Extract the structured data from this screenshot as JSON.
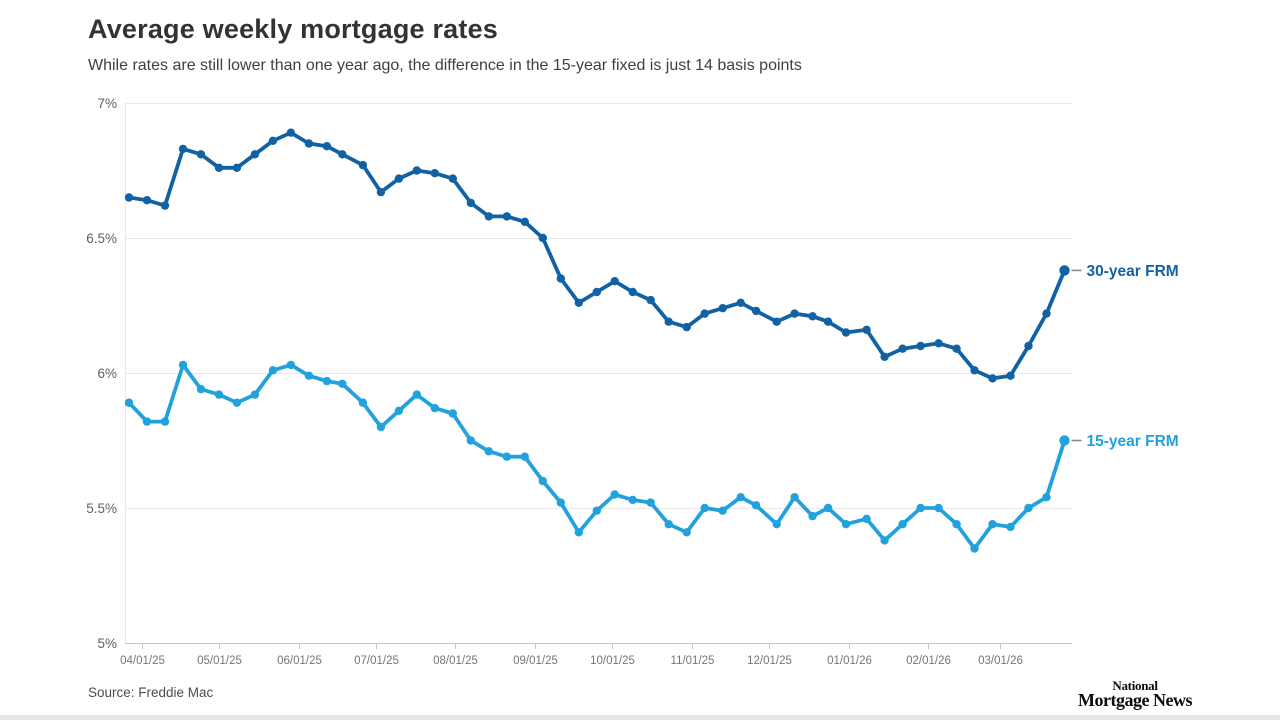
{
  "header": {
    "title": "Average weekly mortgage rates",
    "subtitle": "While rates are still lower than one year ago, the difference in the 15-year fixed is just 14 basis points"
  },
  "chart_data": {
    "type": "line",
    "title": "Average weekly mortgage rates",
    "xlabel": "",
    "ylabel": "",
    "ylim": [
      5,
      7
    ],
    "grid": "horizontal",
    "legend_position": "right-of-last-point",
    "x": [
      "2025-03-27",
      "2025-04-03",
      "2025-04-10",
      "2025-04-17",
      "2025-04-24",
      "2025-05-01",
      "2025-05-08",
      "2025-05-15",
      "2025-05-22",
      "2025-05-29",
      "2025-06-05",
      "2025-06-12",
      "2025-06-18",
      "2025-06-26",
      "2025-07-03",
      "2025-07-10",
      "2025-07-17",
      "2025-07-24",
      "2025-07-31",
      "2025-08-07",
      "2025-08-14",
      "2025-08-21",
      "2025-08-28",
      "2025-09-04",
      "2025-09-11",
      "2025-09-18",
      "2025-09-25",
      "2025-10-02",
      "2025-10-09",
      "2025-10-16",
      "2025-10-23",
      "2025-10-30",
      "2025-11-06",
      "2025-11-13",
      "2025-11-20",
      "2025-11-26",
      "2025-12-04",
      "2025-12-11",
      "2025-12-18",
      "2025-12-24",
      "2025-12-31",
      "2026-01-08",
      "2026-01-15",
      "2026-01-22",
      "2026-01-29",
      "2026-02-05",
      "2026-02-12",
      "2026-02-19",
      "2026-02-26",
      "2026-03-05",
      "2026-03-12",
      "2026-03-19",
      "2026-03-26"
    ],
    "series": [
      {
        "name": "30-year FRM",
        "color": "#1161a5",
        "values": [
          6.65,
          6.64,
          6.62,
          6.83,
          6.81,
          6.76,
          6.76,
          6.81,
          6.86,
          6.89,
          6.85,
          6.84,
          6.81,
          6.77,
          6.67,
          6.72,
          6.75,
          6.74,
          6.72,
          6.63,
          6.58,
          6.58,
          6.56,
          6.5,
          6.35,
          6.26,
          6.3,
          6.34,
          6.3,
          6.27,
          6.19,
          6.17,
          6.22,
          6.24,
          6.26,
          6.23,
          6.19,
          6.22,
          6.21,
          6.19,
          6.15,
          6.16,
          6.06,
          6.09,
          6.1,
          6.11,
          6.09,
          6.01,
          5.98,
          5.99,
          6.1,
          6.22,
          6.38
        ]
      },
      {
        "name": "15-year FRM",
        "color": "#22a2dc",
        "values": [
          5.89,
          5.82,
          5.82,
          6.03,
          5.94,
          5.92,
          5.89,
          5.92,
          6.01,
          6.03,
          5.99,
          5.97,
          5.96,
          5.89,
          5.8,
          5.86,
          5.92,
          5.87,
          5.85,
          5.75,
          5.71,
          5.69,
          5.69,
          5.6,
          5.52,
          5.41,
          5.49,
          5.55,
          5.53,
          5.52,
          5.44,
          5.41,
          5.5,
          5.49,
          5.54,
          5.51,
          5.44,
          5.54,
          5.47,
          5.5,
          5.44,
          5.46,
          5.38,
          5.44,
          5.5,
          5.5,
          5.44,
          5.35,
          5.44,
          5.43,
          5.5,
          5.54,
          5.75
        ]
      }
    ],
    "y_ticks": [
      {
        "value": 7,
        "label": "7%"
      },
      {
        "value": 6.5,
        "label": "6.5%"
      },
      {
        "value": 6,
        "label": "6%"
      },
      {
        "value": 5.5,
        "label": "5.5%"
      },
      {
        "value": 5,
        "label": "5%"
      }
    ],
    "x_ticks": [
      {
        "date": "2025-04-01",
        "label": "04/01/25"
      },
      {
        "date": "2025-05-01",
        "label": "05/01/25"
      },
      {
        "date": "2025-06-01",
        "label": "06/01/25"
      },
      {
        "date": "2025-07-01",
        "label": "07/01/25"
      },
      {
        "date": "2025-08-01",
        "label": "08/01/25"
      },
      {
        "date": "2025-09-01",
        "label": "09/01/25"
      },
      {
        "date": "2025-10-01",
        "label": "10/01/25"
      },
      {
        "date": "2025-11-01",
        "label": "11/01/25"
      },
      {
        "date": "2025-12-01",
        "label": "12/01/25"
      },
      {
        "date": "2026-01-01",
        "label": "01/01/26"
      },
      {
        "date": "2026-02-01",
        "label": "02/01/26"
      },
      {
        "date": "2026-03-01",
        "label": "03/01/26"
      }
    ],
    "style": {
      "grid_color": "#e9e9e9",
      "axis_color": "#c6c6c6",
      "x_tick_label_color": "#767676",
      "y_tick_label_color": "#5f5f5f",
      "legend_connector_color": "#8a8a8a"
    }
  },
  "footer": {
    "source": "Source: Freddie Mac",
    "logo_line1": "National",
    "logo_line2": "Mortgage News"
  }
}
